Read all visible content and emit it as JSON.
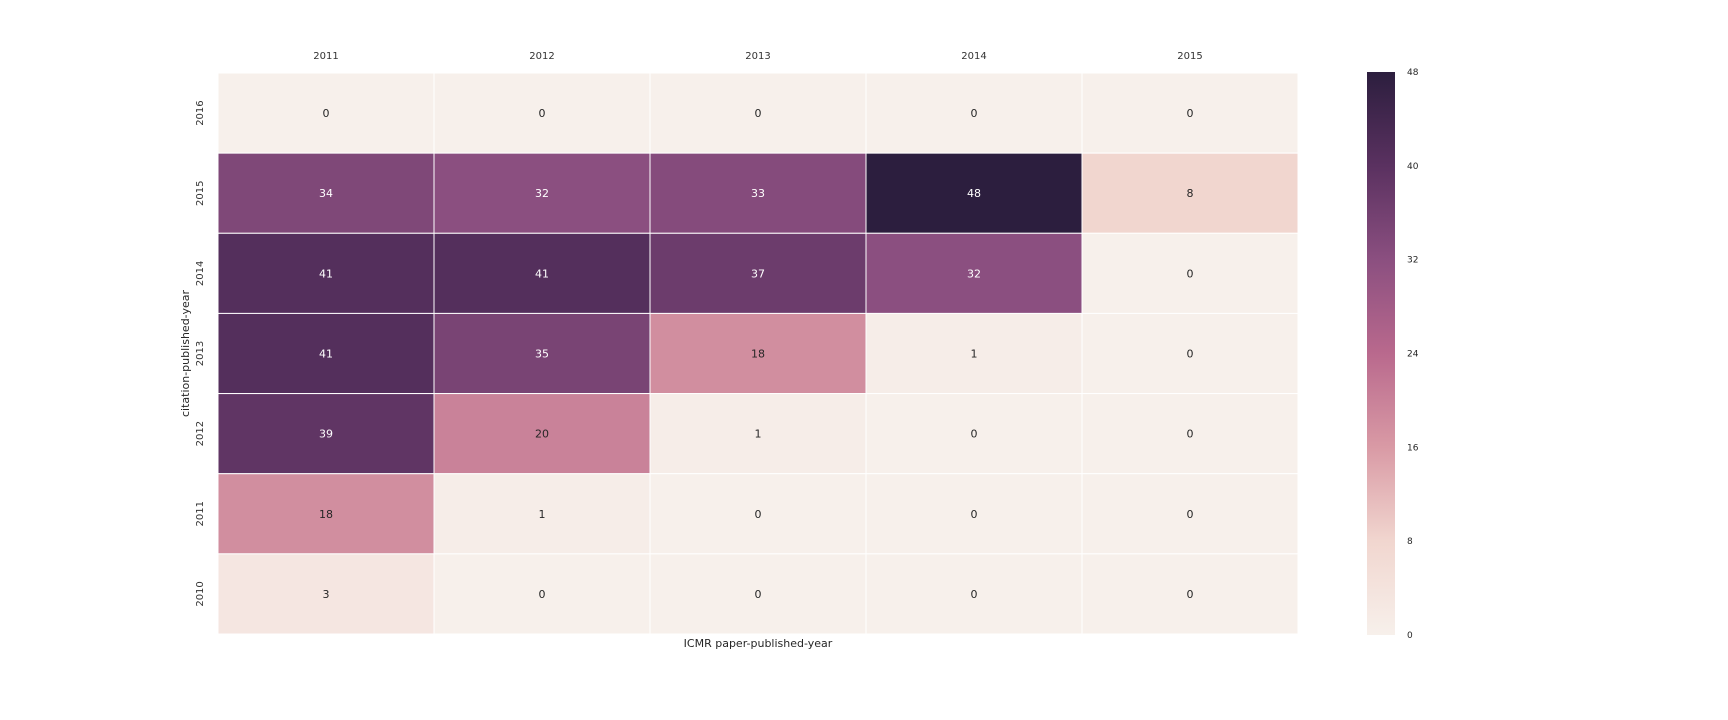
{
  "chart_data": {
    "type": "heatmap",
    "xlabel": "ICMR paper-published-year",
    "ylabel": "citation-published-year",
    "x_categories": [
      "2011",
      "2012",
      "2013",
      "2014",
      "2015"
    ],
    "y_categories": [
      "2016",
      "2015",
      "2014",
      "2013",
      "2012",
      "2011",
      "2010"
    ],
    "values": [
      [
        0,
        0,
        0,
        0,
        0
      ],
      [
        34,
        32,
        33,
        48,
        8
      ],
      [
        41,
        41,
        37,
        32,
        0
      ],
      [
        41,
        35,
        18,
        1,
        0
      ],
      [
        39,
        20,
        1,
        0,
        0
      ],
      [
        18,
        1,
        0,
        0,
        0
      ],
      [
        3,
        0,
        0,
        0,
        0
      ]
    ],
    "value_range": [
      0,
      48
    ],
    "x_axis_position": "top",
    "colorbar": {
      "ticks": [
        "0",
        "8",
        "16",
        "24",
        "32",
        "40",
        "48"
      ],
      "colors": [
        "#f7f0eb",
        "#f1d6cf",
        "#d99aa5",
        "#b9698d",
        "#8b4f80",
        "#5a3160",
        "#2c1e3e"
      ],
      "position": "right"
    },
    "grid": false
  }
}
